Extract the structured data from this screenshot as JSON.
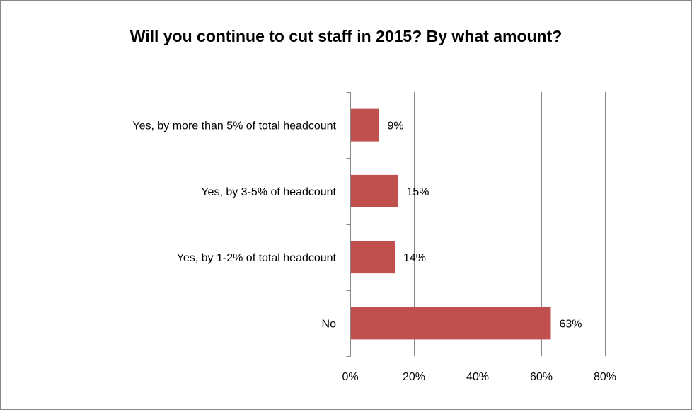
{
  "chart_data": {
    "type": "bar",
    "orientation": "horizontal",
    "title": "Will you continue to cut staff in 2015? By what amount?",
    "categories": [
      "Yes, by more than 5% of total headcount",
      "Yes, by 3-5% of headcount",
      "Yes, by 1-2% of total headcount",
      "No"
    ],
    "values": [
      9,
      15,
      14,
      63
    ],
    "data_labels": [
      "9%",
      "15%",
      "14%",
      "63%"
    ],
    "xlim": [
      0,
      80
    ],
    "x_ticks": [
      0,
      20,
      40,
      60,
      80
    ],
    "x_tick_labels": [
      "0%",
      "20%",
      "40%",
      "60%",
      "80%"
    ],
    "xlabel": "",
    "ylabel": "",
    "grid": "vertical gridlines",
    "legend": "none",
    "bar_color": "#C0504D",
    "gridline_color": "#868686"
  }
}
